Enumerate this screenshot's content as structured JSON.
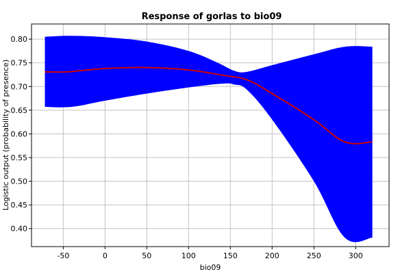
{
  "chart_data": {
    "type": "area",
    "title": "Response of gorlas to bio09",
    "xlabel": "bio09",
    "ylabel": "Logistic output (probability of presence)",
    "xlim": [
      -88,
      340
    ],
    "ylim": [
      0.362,
      0.832
    ],
    "xticks": [
      -50,
      0,
      50,
      100,
      150,
      200,
      250,
      300
    ],
    "yticks": [
      0.4,
      0.45,
      0.5,
      0.55,
      0.6,
      0.65,
      0.7,
      0.75,
      0.8
    ],
    "ytick_labels": [
      "0.40",
      "0.45",
      "0.50",
      "0.55",
      "0.60",
      "0.65",
      "0.70",
      "0.75",
      "0.80"
    ],
    "grid": true,
    "colors": {
      "band": "#0000ff",
      "mean": "#cc0000",
      "grid": "#c0c0c0"
    },
    "series": [
      {
        "role": "mean",
        "points": [
          [
            -72,
            0.731
          ],
          [
            -45,
            0.731
          ],
          [
            0,
            0.738
          ],
          [
            50,
            0.74
          ],
          [
            100,
            0.735
          ],
          [
            140,
            0.724
          ],
          [
            170,
            0.714
          ],
          [
            200,
            0.685
          ],
          [
            250,
            0.63
          ],
          [
            287,
            0.583
          ],
          [
            320,
            0.583
          ]
        ]
      },
      {
        "role": "upper",
        "points": [
          [
            -72,
            0.805
          ],
          [
            -40,
            0.807
          ],
          [
            0,
            0.804
          ],
          [
            50,
            0.795
          ],
          [
            100,
            0.775
          ],
          [
            135,
            0.75
          ],
          [
            155,
            0.733
          ],
          [
            170,
            0.731
          ],
          [
            200,
            0.745
          ],
          [
            250,
            0.768
          ],
          [
            287,
            0.784
          ],
          [
            320,
            0.784
          ]
        ]
      },
      {
        "role": "lower",
        "points": [
          [
            -72,
            0.657
          ],
          [
            -40,
            0.657
          ],
          [
            0,
            0.67
          ],
          [
            50,
            0.685
          ],
          [
            100,
            0.698
          ],
          [
            140,
            0.706
          ],
          [
            155,
            0.704
          ],
          [
            170,
            0.693
          ],
          [
            200,
            0.63
          ],
          [
            250,
            0.5
          ],
          [
            287,
            0.381
          ],
          [
            320,
            0.381
          ]
        ]
      }
    ]
  }
}
